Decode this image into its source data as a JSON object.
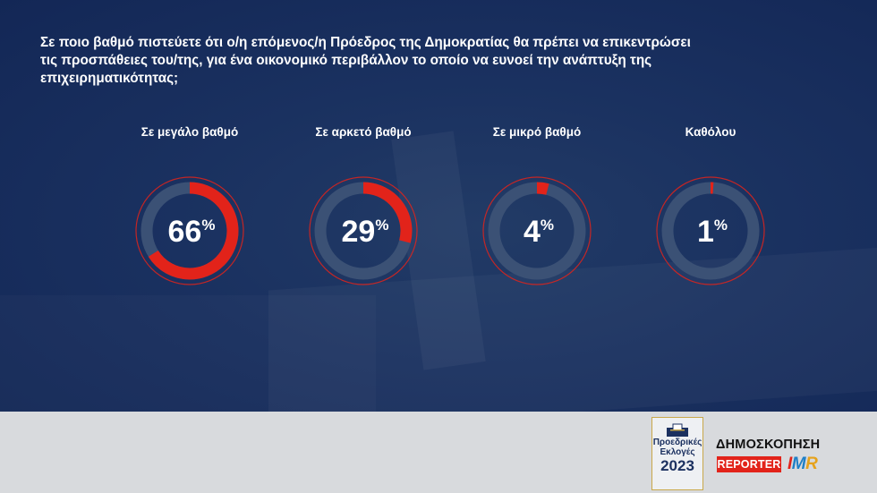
{
  "question": [
    "Σε ποιο βαθμό πιστεύετε ότι ο/η επόμενος/η Πρόεδρος της Δημοκρατίας θα πρέπει να επικεντρώσει",
    "τις προσπάθειες του/της, για ένα οικονομικό περιβάλλον το οποίο να ευνοεί την ανάπτυξη της",
    "επιχειρηματικότητας;"
  ],
  "chart_data": {
    "type": "donut",
    "categories": [
      "Σε μεγάλο βαθμό",
      "Σε αρκετό βαθμό",
      "Σε μικρό βαθμό",
      "Καθόλου"
    ],
    "values": [
      66,
      29,
      4,
      1
    ],
    "unit": "%",
    "colors": {
      "fill": "#e2231a",
      "track": "#3b5175"
    }
  },
  "footer": {
    "elections_logo": {
      "line1": "Προεδρικές",
      "line2": "Εκλογές",
      "year": "2023"
    },
    "poll_title": "ΔΗΜΟΣΚΟΠΗΣΗ",
    "reporter": "REPORTER",
    "imr": {
      "i": "I",
      "m": "M",
      "r": "R"
    }
  }
}
